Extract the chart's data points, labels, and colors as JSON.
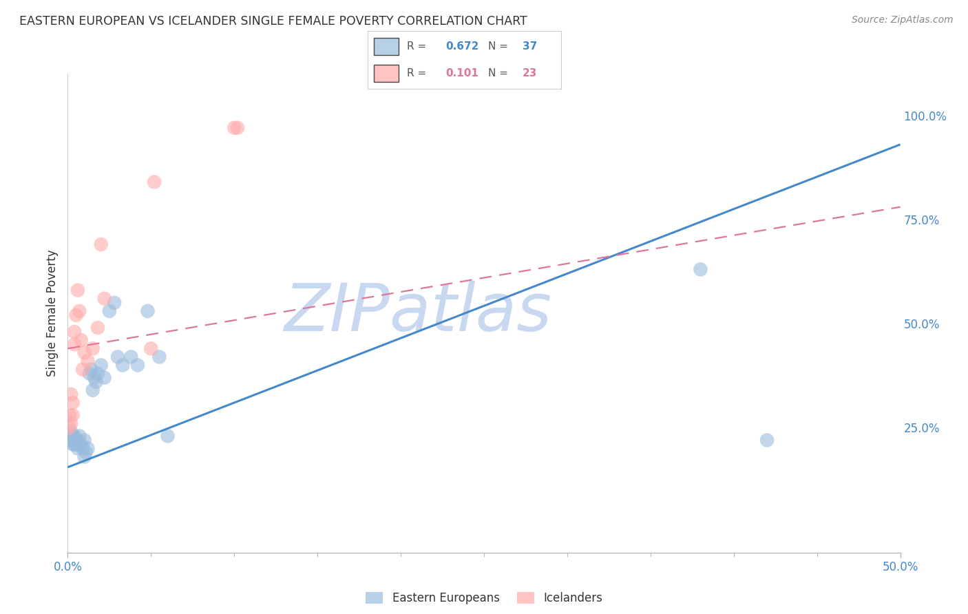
{
  "title": "EASTERN EUROPEAN VS ICELANDER SINGLE FEMALE POVERTY CORRELATION CHART",
  "source": "Source: ZipAtlas.com",
  "ylabel": "Single Female Poverty",
  "xlim": [
    0.0,
    0.5
  ],
  "ylim": [
    -0.05,
    1.1
  ],
  "xtick_positions": [
    0.0,
    0.5
  ],
  "xtick_labels": [
    "0.0%",
    "50.0%"
  ],
  "yticks_right": [
    0.25,
    0.5,
    0.75,
    1.0
  ],
  "ytick_labels_right": [
    "25.0%",
    "50.0%",
    "75.0%",
    "100.0%"
  ],
  "grid_color": "#dddddd",
  "background_color": "#ffffff",
  "blue_color": "#99bbdd",
  "pink_color": "#ffaaaa",
  "blue_line_color": "#4488cc",
  "pink_line_color": "#dd7799",
  "label_blue": "Eastern Europeans",
  "label_pink": "Icelanders",
  "watermark": "ZIPatlas",
  "watermark_color": "#c8d8f0",
  "blue_x": [
    0.002,
    0.002,
    0.003,
    0.003,
    0.004,
    0.004,
    0.005,
    0.005,
    0.006,
    0.006,
    0.007,
    0.007,
    0.008,
    0.009,
    0.01,
    0.01,
    0.011,
    0.012,
    0.013,
    0.014,
    0.015,
    0.016,
    0.017,
    0.018,
    0.02,
    0.022,
    0.025,
    0.028,
    0.03,
    0.033,
    0.038,
    0.042,
    0.048,
    0.055,
    0.06,
    0.38,
    0.42
  ],
  "blue_y": [
    0.22,
    0.24,
    0.21,
    0.23,
    0.21,
    0.23,
    0.21,
    0.22,
    0.2,
    0.22,
    0.21,
    0.23,
    0.21,
    0.2,
    0.22,
    0.18,
    0.19,
    0.2,
    0.38,
    0.39,
    0.34,
    0.37,
    0.36,
    0.38,
    0.4,
    0.37,
    0.53,
    0.55,
    0.42,
    0.4,
    0.42,
    0.4,
    0.53,
    0.42,
    0.23,
    0.63,
    0.22
  ],
  "pink_x": [
    0.001,
    0.001,
    0.002,
    0.002,
    0.003,
    0.003,
    0.004,
    0.004,
    0.005,
    0.006,
    0.007,
    0.008,
    0.009,
    0.01,
    0.012,
    0.015,
    0.018,
    0.02,
    0.022,
    0.05,
    0.052,
    0.1,
    0.102
  ],
  "pink_y": [
    0.25,
    0.28,
    0.26,
    0.33,
    0.28,
    0.31,
    0.45,
    0.48,
    0.52,
    0.58,
    0.53,
    0.46,
    0.39,
    0.43,
    0.41,
    0.44,
    0.49,
    0.69,
    0.56,
    0.44,
    0.84,
    0.97,
    0.97
  ],
  "blue_line_x0": 0.0,
  "blue_line_y0": 0.155,
  "blue_line_x1": 0.5,
  "blue_line_y1": 0.93,
  "pink_line_x0": 0.0,
  "pink_line_y0": 0.44,
  "pink_line_x1": 0.5,
  "pink_line_y1": 0.78
}
